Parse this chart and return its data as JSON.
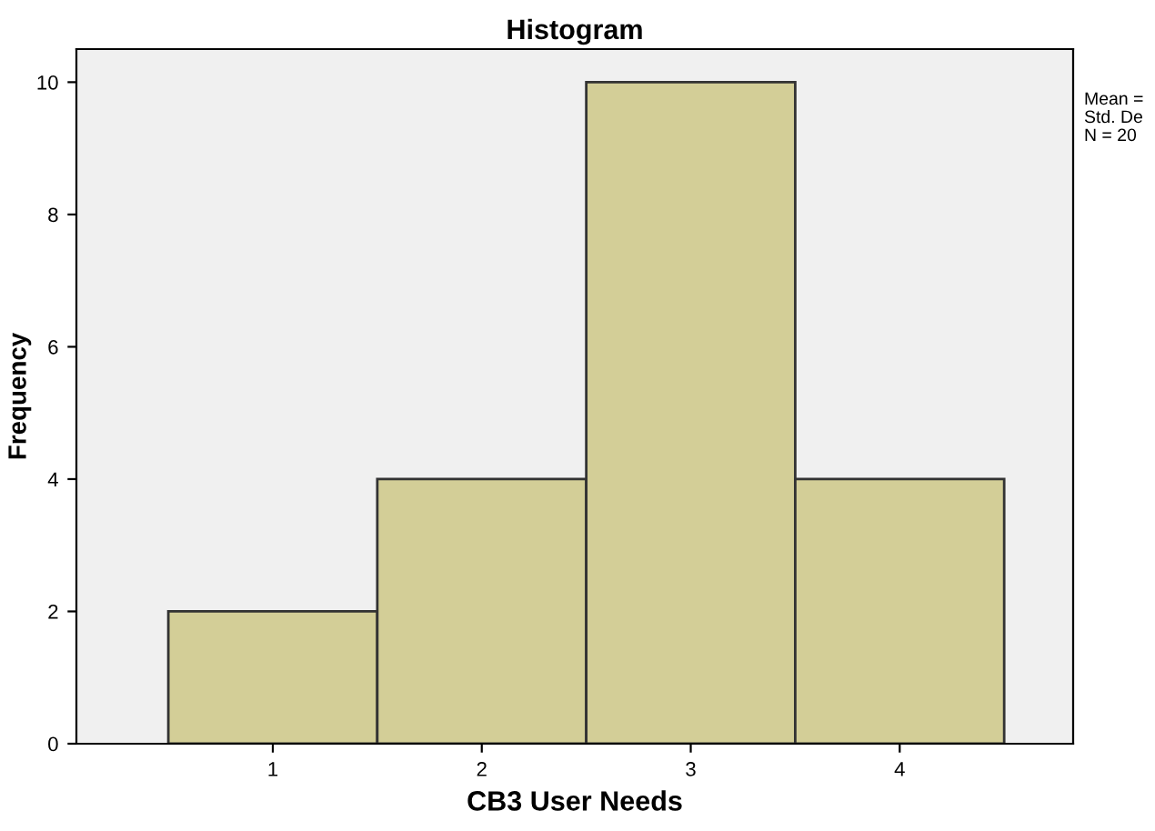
{
  "chart_data": {
    "type": "histogram",
    "title": "Histogram",
    "xlabel": "CB3 User Needs",
    "ylabel": "Frequency",
    "bins": [
      0.5,
      1.5,
      2.5,
      3.5,
      4.5
    ],
    "values": [
      2,
      4,
      10,
      4
    ],
    "color": "#d3ce97",
    "xlim": [
      0.06,
      4.83
    ],
    "xticks": [
      1,
      2,
      3,
      4
    ],
    "ylim": [
      0,
      10.5
    ],
    "yticks": [
      0,
      2,
      4,
      6,
      8,
      10
    ],
    "grid": false,
    "annotations": [
      "Mean =",
      "Std. De",
      "N = 20"
    ]
  }
}
